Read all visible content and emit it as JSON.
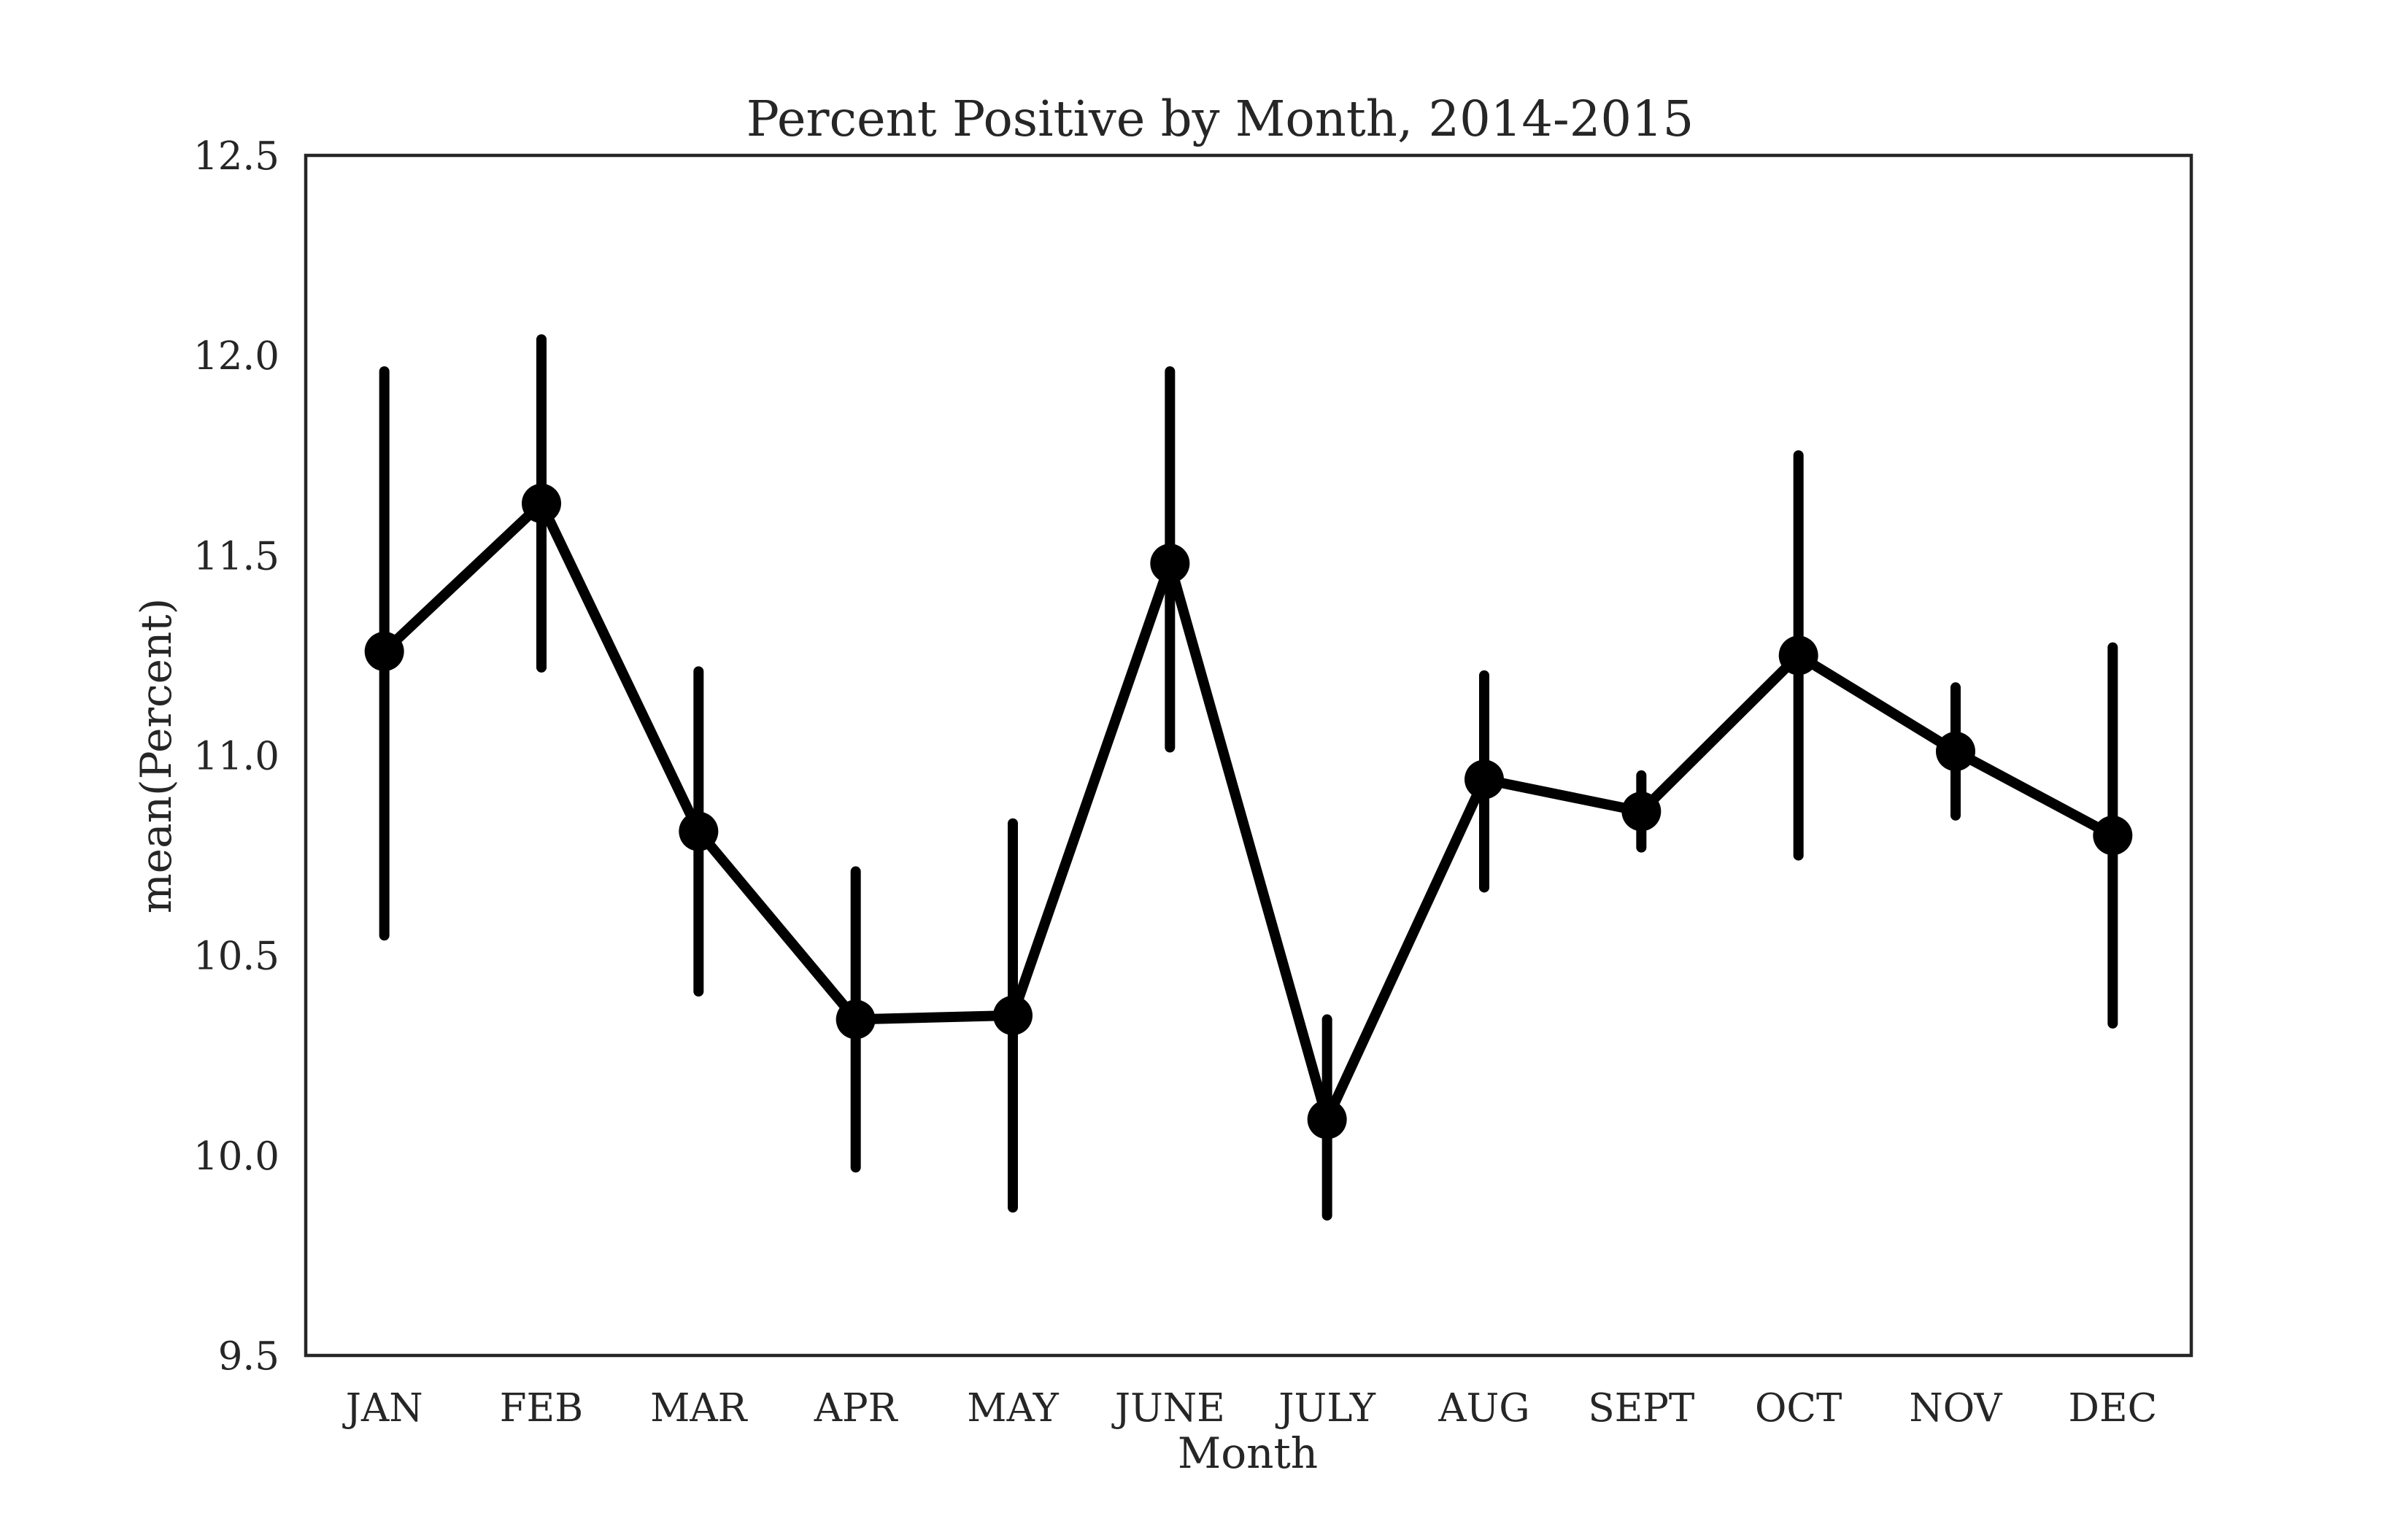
{
  "chart_data": {
    "type": "line",
    "title": "Percent Positive by Month, 2014-2015",
    "xlabel": "Month",
    "ylabel": "mean(Percent)",
    "categories": [
      "JAN",
      "FEB",
      "MAR",
      "APR",
      "MAY",
      "JUNE",
      "JULY",
      "AUG",
      "SEPT",
      "OCT",
      "NOV",
      "DEC"
    ],
    "values": [
      11.26,
      11.63,
      10.81,
      10.34,
      10.35,
      11.48,
      10.09,
      10.94,
      10.86,
      11.25,
      11.01,
      10.8
    ],
    "error_low": [
      10.55,
      11.22,
      10.41,
      9.97,
      9.87,
      11.02,
      9.85,
      10.67,
      10.77,
      10.75,
      10.85,
      10.33
    ],
    "error_high": [
      11.96,
      12.04,
      11.21,
      10.71,
      10.83,
      11.96,
      10.34,
      11.2,
      10.95,
      11.75,
      11.17,
      11.27
    ],
    "ylim": [
      9.5,
      12.5
    ],
    "yticks": [
      "9.5",
      "10.0",
      "10.5",
      "11.0",
      "11.5",
      "12.0",
      "12.5"
    ],
    "grid": false,
    "color": "#000000"
  }
}
